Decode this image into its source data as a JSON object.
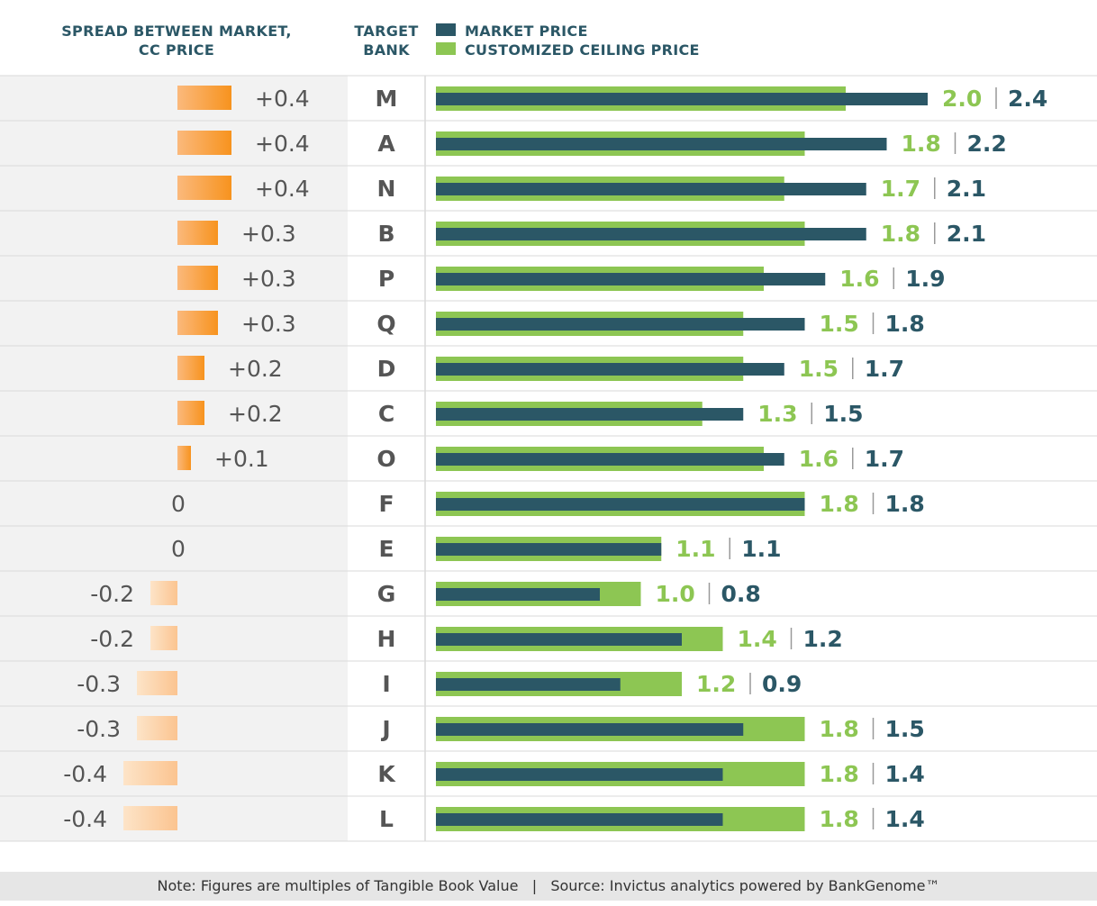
{
  "headers": {
    "spread_line1": "SPREAD BETWEEN MARKET,",
    "spread_line2": "CC PRICE",
    "bank_line1": "TARGET",
    "bank_line2": "BANK"
  },
  "legend": {
    "market": "MARKET PRICE",
    "cc": "CUSTOMIZED CEILING PRICE"
  },
  "colors": {
    "market": "#2b5766",
    "cc": "#8dc653",
    "spread_strong": "#f7931e",
    "spread_light": "#fde4c8",
    "row_bg": "#f2f2f2",
    "divider": "#d9d9d9"
  },
  "chart_data": {
    "type": "bar",
    "categories": [
      "M",
      "A",
      "N",
      "B",
      "P",
      "Q",
      "D",
      "C",
      "O",
      "F",
      "E",
      "G",
      "H",
      "I",
      "J",
      "K",
      "L"
    ],
    "series": [
      {
        "name": "MARKET PRICE",
        "values": [
          2.4,
          2.2,
          2.1,
          2.1,
          1.9,
          1.8,
          1.7,
          1.5,
          1.7,
          1.8,
          1.1,
          0.8,
          1.2,
          0.9,
          1.5,
          1.4,
          1.4
        ]
      },
      {
        "name": "CUSTOMIZED CEILING PRICE",
        "values": [
          2.0,
          1.8,
          1.7,
          1.8,
          1.6,
          1.5,
          1.5,
          1.3,
          1.6,
          1.8,
          1.1,
          1.0,
          1.4,
          1.2,
          1.8,
          1.8,
          1.8
        ]
      }
    ],
    "market_labels": [
      "2.4",
      "2.2",
      "2.1",
      "2.1",
      "1.9",
      "1.8",
      "1.7",
      "1.5",
      "1.7",
      "1.8",
      "1.1",
      "0.8",
      "1.2",
      "0.9",
      "1.5",
      "1.4",
      "1.4"
    ],
    "cc_labels": [
      "2.0",
      "1.8",
      "1.7",
      "1.8",
      "1.6",
      "1.5",
      "1.5",
      "1.3",
      "1.6",
      "1.8",
      "1.1",
      "1.0",
      "1.4",
      "1.2",
      "1.8",
      "1.8",
      "1.8"
    ],
    "spread_values": [
      0.4,
      0.4,
      0.4,
      0.3,
      0.3,
      0.3,
      0.2,
      0.2,
      0.1,
      0,
      0,
      -0.2,
      -0.2,
      -0.3,
      -0.3,
      -0.4,
      -0.4
    ],
    "spread_labels": [
      "+0.4",
      "+0.4",
      "+0.4",
      "+0.3",
      "+0.3",
      "+0.3",
      "+0.2",
      "+0.2",
      "+0.1",
      "0",
      "0",
      "-0.2",
      "-0.2",
      "-0.3",
      "-0.3",
      "-0.4",
      "-0.4"
    ],
    "separator": "|"
  },
  "footnote": "Note: Figures are multiples of Tangible Book Value   |   Source: Invictus analytics powered by BankGenome™"
}
